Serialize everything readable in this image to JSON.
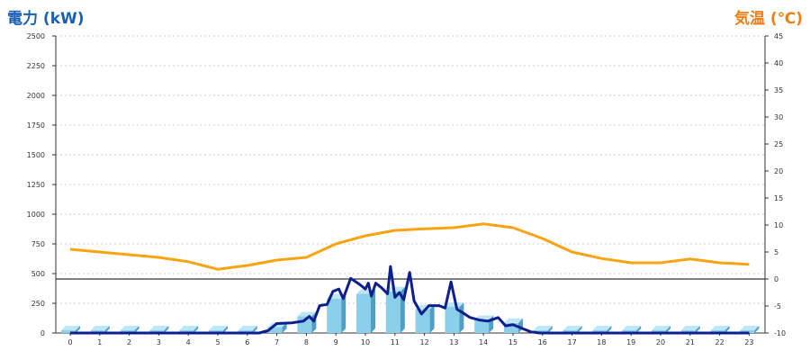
{
  "colors": {
    "power_axis": "#1a5fb4",
    "temp_axis": "#f07d12",
    "temp_line": "#f7a410",
    "power_line": "#0d1f8c",
    "bar_face": "#8ccfea",
    "bar_side": "#4f9ec4",
    "bar_top": "#bfe6f6",
    "grid": "#cccccc"
  },
  "chart_data": {
    "type": "bar",
    "title_left": "電力 (kW)",
    "title_right": "気温 (℃)",
    "grid": true,
    "y_left": {
      "range": [
        0,
        2500
      ],
      "ticks": [
        0,
        250,
        500,
        750,
        1000,
        1250,
        1500,
        1750,
        2000,
        2250,
        2500
      ],
      "tick_labels": [
        "0",
        "250",
        "500",
        "750",
        "1000",
        "1250",
        "1500",
        "1750",
        "2000",
        "2250",
        "2500"
      ]
    },
    "y_right": {
      "range": [
        -10,
        45
      ],
      "ticks": [
        -10,
        -5,
        0,
        5,
        10,
        15,
        20,
        25,
        30,
        35,
        40,
        45
      ],
      "tick_labels": [
        "-10",
        "-5",
        "0",
        "5",
        "10",
        "15",
        "20",
        "25",
        "30",
        "35",
        "40",
        "45"
      ]
    },
    "categories": [
      "0",
      "1",
      "2",
      "3",
      "4",
      "5",
      "6",
      "7",
      "8",
      "9",
      "10",
      "11",
      "12",
      "13",
      "14",
      "15",
      "16",
      "17",
      "18",
      "19",
      "20",
      "21",
      "22",
      "23"
    ],
    "bar_values": [
      0,
      0,
      0,
      0,
      0,
      0,
      0,
      50,
      140,
      290,
      330,
      350,
      200,
      220,
      110,
      85,
      5,
      5,
      5,
      5,
      5,
      5,
      5,
      5
    ],
    "temperature": [
      5.5,
      5.0,
      4.5,
      4.0,
      3.2,
      1.8,
      2.5,
      3.5,
      4.0,
      6.5,
      8.0,
      9.0,
      9.3,
      9.5,
      10.2,
      9.5,
      7.5,
      5.0,
      3.8,
      3.0,
      3.0,
      3.7,
      3.0,
      2.7
    ],
    "power_line": [
      [
        0,
        0
      ],
      [
        6.4,
        0
      ],
      [
        6.7,
        20
      ],
      [
        7.0,
        80
      ],
      [
        7.5,
        85
      ],
      [
        7.9,
        100
      ],
      [
        8.1,
        140
      ],
      [
        8.25,
        100
      ],
      [
        8.45,
        230
      ],
      [
        8.7,
        240
      ],
      [
        8.9,
        350
      ],
      [
        9.1,
        370
      ],
      [
        9.25,
        290
      ],
      [
        9.5,
        460
      ],
      [
        9.8,
        410
      ],
      [
        10.0,
        370
      ],
      [
        10.1,
        420
      ],
      [
        10.2,
        310
      ],
      [
        10.35,
        420
      ],
      [
        10.55,
        380
      ],
      [
        10.75,
        330
      ],
      [
        10.85,
        560
      ],
      [
        11.0,
        300
      ],
      [
        11.15,
        340
      ],
      [
        11.3,
        280
      ],
      [
        11.5,
        510
      ],
      [
        11.65,
        270
      ],
      [
        11.9,
        160
      ],
      [
        12.15,
        230
      ],
      [
        12.5,
        230
      ],
      [
        12.7,
        210
      ],
      [
        12.9,
        430
      ],
      [
        13.1,
        200
      ],
      [
        13.3,
        170
      ],
      [
        13.55,
        130
      ],
      [
        13.85,
        110
      ],
      [
        14.15,
        100
      ],
      [
        14.5,
        130
      ],
      [
        14.75,
        60
      ],
      [
        15.0,
        70
      ],
      [
        15.3,
        40
      ],
      [
        15.6,
        10
      ],
      [
        15.9,
        0
      ],
      [
        23.0,
        0
      ]
    ]
  }
}
